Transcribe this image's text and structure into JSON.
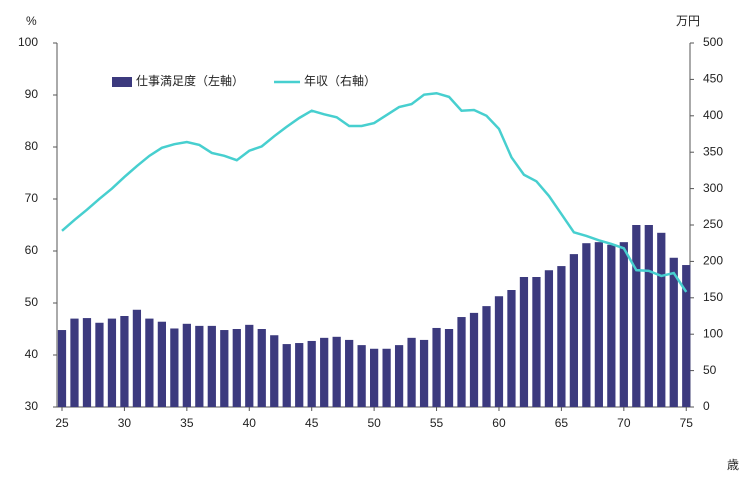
{
  "chart_data": {
    "type": "bar_line",
    "y_label": "%",
    "y2_label": "万円",
    "x_label": "歳",
    "x": [
      25,
      26,
      27,
      28,
      29,
      30,
      31,
      32,
      33,
      34,
      35,
      36,
      37,
      38,
      39,
      40,
      41,
      42,
      43,
      44,
      45,
      46,
      47,
      48,
      49,
      50,
      51,
      52,
      53,
      54,
      55,
      56,
      57,
      58,
      59,
      60,
      61,
      62,
      63,
      64,
      65,
      66,
      67,
      68,
      69,
      70,
      71,
      72,
      73,
      74,
      75
    ],
    "xlim": [
      24.6,
      75.3
    ],
    "xticks": [
      25,
      30,
      35,
      40,
      45,
      50,
      55,
      60,
      65,
      70,
      75
    ],
    "ylim": [
      30,
      100
    ],
    "yticks": [
      30,
      40,
      50,
      60,
      70,
      80,
      90,
      100
    ],
    "y2lim": [
      0,
      500
    ],
    "y2ticks": [
      0,
      50,
      100,
      150,
      200,
      250,
      300,
      350,
      400,
      450,
      500
    ],
    "legend": "top-left",
    "series": [
      {
        "name": "仕事満足度（左軸）",
        "color": "#3c3a7e",
        "kind": "bar",
        "values": [
          44.8,
          47,
          47.1,
          46.2,
          47,
          47.5,
          48.7,
          47,
          46.4,
          45.1,
          46,
          45.6,
          45.6,
          44.8,
          45,
          45.8,
          45,
          43.8,
          42.1,
          42.3,
          42.7,
          43.3,
          43.5,
          42.9,
          41.9,
          41.2,
          41.2,
          41.9,
          43.3,
          42.9,
          45.2,
          45,
          47.3,
          48.1,
          49.4,
          51.3,
          52.5,
          55,
          55,
          56.3,
          57.1,
          59.4,
          61.5,
          61.7,
          61.2,
          61.7,
          65,
          65,
          63.5,
          58.7,
          57.3
        ]
      },
      {
        "name": "年収（右軸）",
        "color": "#47cfcf",
        "kind": "line",
        "axis": "y2",
        "values": [
          242,
          257,
          271,
          286,
          300,
          316,
          331,
          345,
          356,
          361,
          364,
          360,
          349,
          345,
          339,
          352,
          358,
          372,
          385,
          397,
          407,
          402,
          398,
          386,
          386,
          390,
          401,
          412,
          416,
          429,
          431,
          426,
          407,
          408,
          400,
          382,
          343,
          319,
          310,
          290,
          265,
          240,
          235,
          229,
          224,
          218,
          188,
          187,
          180,
          184,
          158
        ]
      }
    ]
  }
}
